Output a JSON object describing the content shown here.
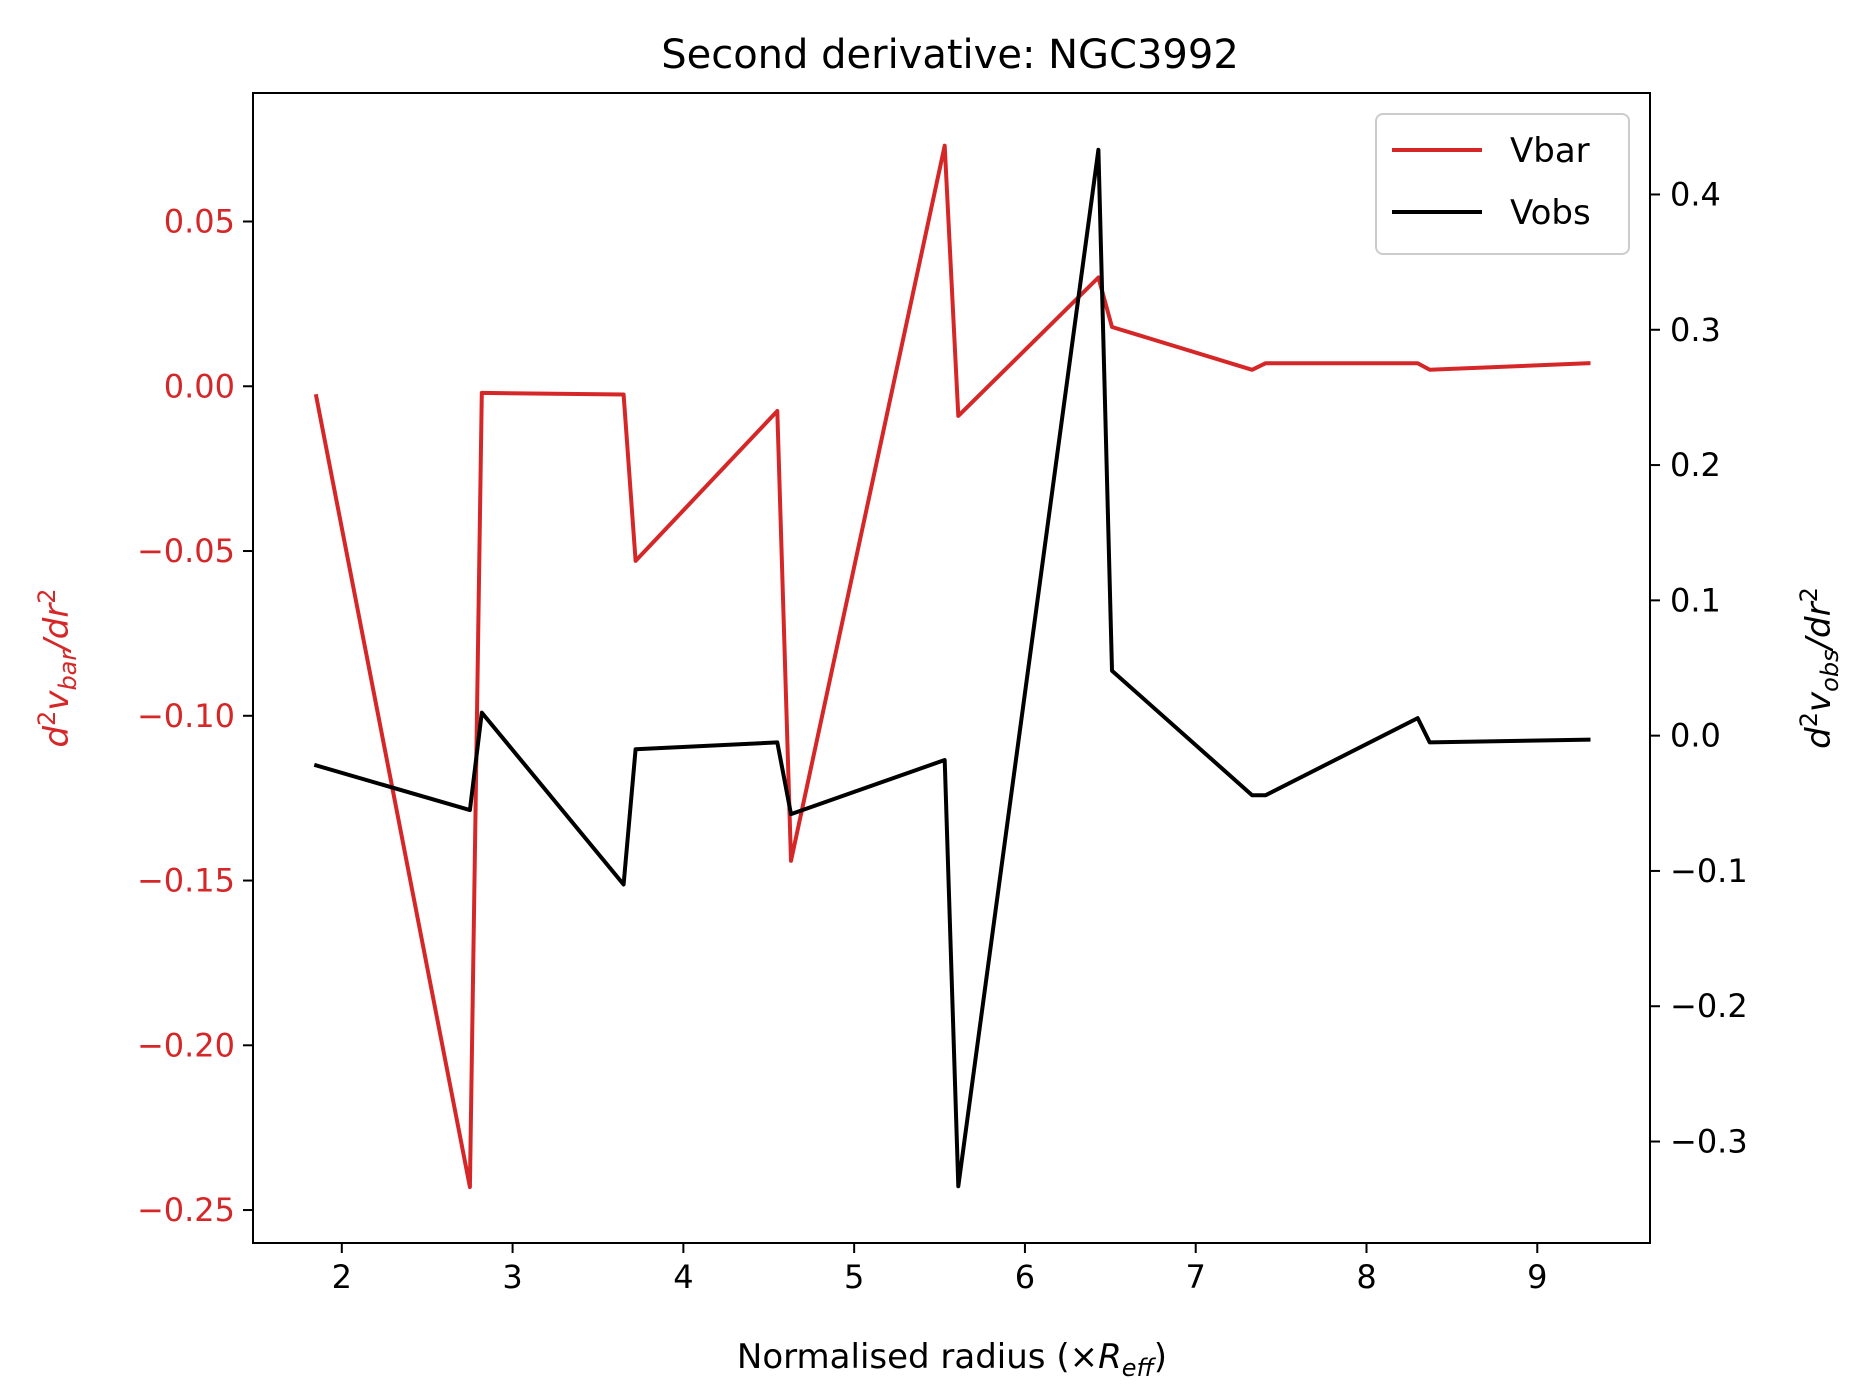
{
  "chart_data": {
    "type": "line",
    "title": "Second derivative: NGC3992",
    "xlabel": "Normalised radius (×R_eff)",
    "xlabel_parts": {
      "prefix": "Normalised radius (×",
      "var": "R",
      "sub": "eff",
      "suffix": ")"
    },
    "ylabel_left": "d²v_bar/dr²",
    "ylabel_left_parts": {
      "d": "d",
      "sup": "2",
      "v": "v",
      "sub": "bar",
      "rest": "/dr",
      "sup2": "2"
    },
    "ylabel_right": "d²v_obs/dr²",
    "ylabel_right_parts": {
      "d": "d",
      "sup": "2",
      "v": "v",
      "sub": "obs",
      "rest": "/dr",
      "sup2": "2"
    },
    "xlim": [
      1.48,
      9.66
    ],
    "ylim_left": [
      -0.26,
      0.089
    ],
    "ylim_right": [
      -0.375,
      0.475
    ],
    "x_ticks": [
      "2",
      "3",
      "4",
      "5",
      "6",
      "7",
      "8",
      "9"
    ],
    "y_ticks_left": [
      "0.05",
      "0.00",
      "−0.05",
      "−0.10",
      "−0.15",
      "−0.20",
      "−0.25"
    ],
    "y_ticks_right": [
      "0.4",
      "0.3",
      "0.2",
      "0.1",
      "0.0",
      "−0.1",
      "−0.2",
      "−0.3"
    ],
    "y_ticks_left_values": [
      0.05,
      0.0,
      -0.05,
      -0.1,
      -0.15,
      -0.2,
      -0.25
    ],
    "y_ticks_right_values": [
      0.4,
      0.3,
      0.2,
      0.1,
      0.0,
      -0.1,
      -0.2,
      -0.3
    ],
    "legend_position": "top-right",
    "colors": {
      "vbar": "#d62728",
      "vobs": "#000000"
    },
    "series": [
      {
        "name": "Vbar",
        "axis": "left",
        "color": "#d62728",
        "x": [
          1.85,
          2.75,
          2.82,
          3.65,
          3.72,
          4.55,
          4.63,
          5.53,
          5.61,
          6.43,
          6.51,
          7.33,
          7.41,
          8.3,
          8.37,
          9.3
        ],
        "y": [
          -0.003,
          -0.243,
          -0.002,
          -0.0025,
          -0.053,
          -0.0075,
          -0.144,
          0.073,
          -0.009,
          0.033,
          0.018,
          0.005,
          0.007,
          0.007,
          0.005,
          0.007
        ]
      },
      {
        "name": "Vobs",
        "axis": "right",
        "color": "#000000",
        "x": [
          1.85,
          2.75,
          2.82,
          3.65,
          3.72,
          4.55,
          4.63,
          5.53,
          5.61,
          6.43,
          6.51,
          7.33,
          7.41,
          8.3,
          8.37,
          9.3
        ],
        "y": [
          -0.022,
          -0.055,
          0.017,
          -0.11,
          -0.01,
          -0.005,
          -0.058,
          -0.018,
          -0.333,
          0.433,
          0.048,
          -0.044,
          -0.044,
          0.013,
          -0.005,
          -0.003
        ]
      }
    ]
  }
}
